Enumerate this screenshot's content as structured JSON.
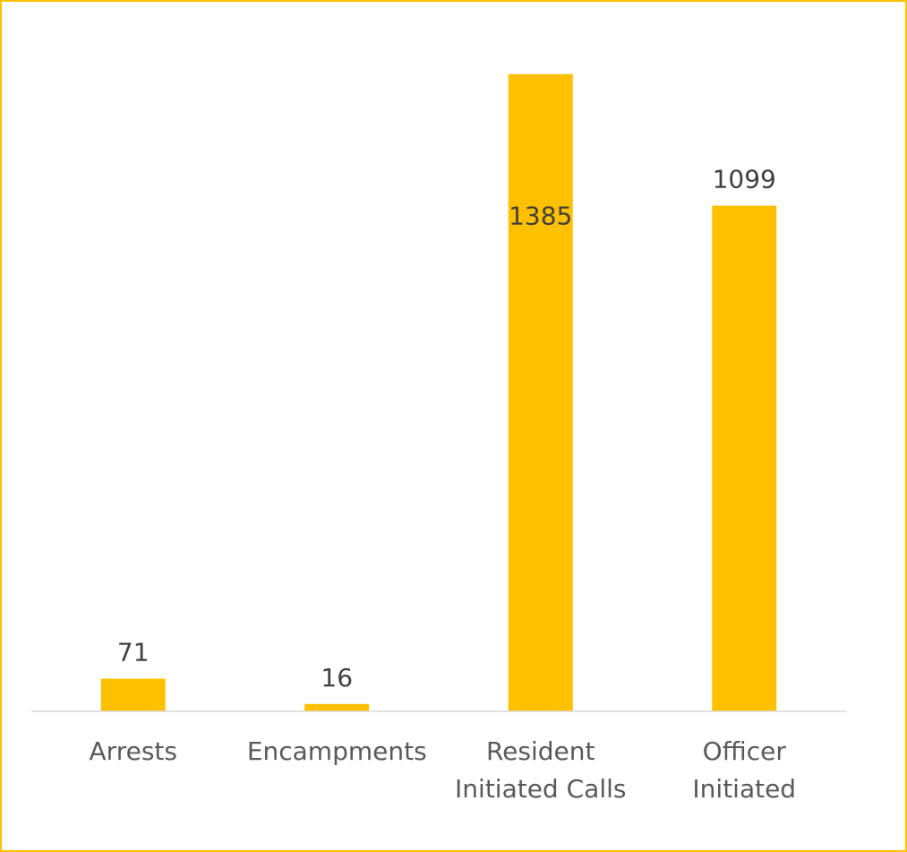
{
  "chart_data": {
    "type": "bar",
    "categories": [
      [
        "Arrests"
      ],
      [
        "Encampments"
      ],
      [
        "Resident",
        "Initiated Calls"
      ],
      [
        "Officer",
        "Initiated"
      ]
    ],
    "values": [
      71,
      16,
      1385,
      1099
    ],
    "data_labels": [
      "71",
      "16",
      "1385",
      "1099"
    ],
    "ylim": [
      0,
      1400
    ],
    "grid": false,
    "legend": "none",
    "colors": {
      "bar": "#FFC000",
      "border": "#FFC000",
      "axis": "#D9D9D9",
      "value_text": "#404040",
      "category_text": "#595959"
    }
  }
}
